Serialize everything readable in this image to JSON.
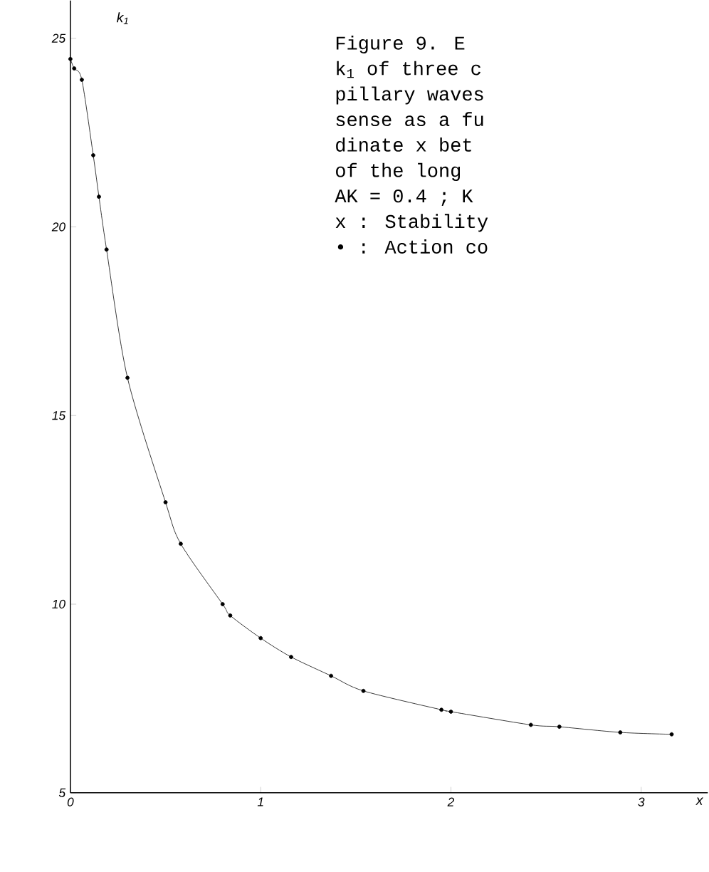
{
  "chart_data": {
    "type": "line",
    "xlabel": "x",
    "ylabel": "k$_{1}$",
    "annotations": [
      "Figure 9.  E",
      "k$_{1}$ of three c",
      "pillary waves",
      "sense as a fu",
      "dinate x bet",
      "of the long",
      "AK = 0.4 ; K",
      "x : Stability",
      "• : Action co"
    ],
    "x": [
      0,
      0.02,
      0.06,
      0.12,
      0.15,
      0.19,
      0.3,
      0.5,
      0.58,
      0.8,
      0.84,
      1.0,
      1.16,
      1.37,
      1.54,
      1.95,
      2.0,
      2.42,
      2.57,
      2.89,
      3.16
    ],
    "values": [
      24.45,
      24.2,
      23.9,
      21.9,
      20.8,
      19.4,
      16.0,
      12.7,
      11.6,
      10.0,
      9.7,
      9.1,
      8.6,
      8.1,
      7.7,
      7.2,
      7.15,
      6.8,
      6.75,
      6.6,
      6.55
    ],
    "color": "#000000",
    "marker": "circle",
    "line_style": "solid",
    "xlim": [
      0,
      3.35
    ],
    "ylim": [
      5,
      26
    ],
    "xticks": [
      0,
      1,
      2,
      3
    ],
    "yticks": [
      5,
      10,
      15,
      20,
      25
    ]
  }
}
